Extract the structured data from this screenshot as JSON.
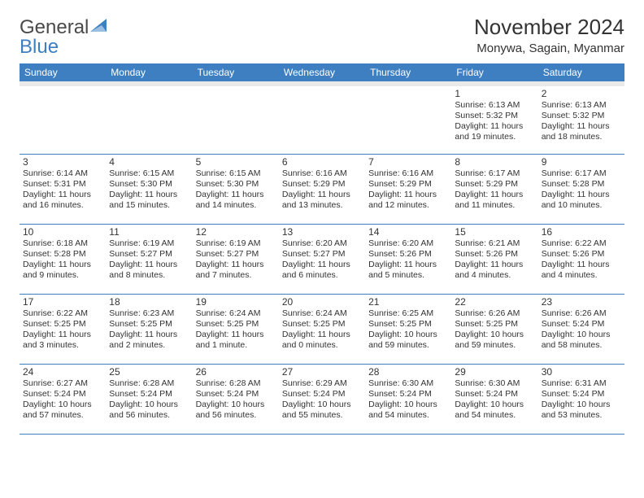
{
  "brand": {
    "part1": "General",
    "part2": "Blue"
  },
  "title": "November 2024",
  "location": "Monywa, Sagain, Myanmar",
  "colors": {
    "accent": "#3d7fc1",
    "header_band": "#e9e9e9",
    "text": "#333333",
    "bg": "#ffffff"
  },
  "weekdays": [
    "Sunday",
    "Monday",
    "Tuesday",
    "Wednesday",
    "Thursday",
    "Friday",
    "Saturday"
  ],
  "layout": {
    "blanks_before": 5,
    "days_in_month": 30
  },
  "days": {
    "1": {
      "sunrise": "6:13 AM",
      "sunset": "5:32 PM",
      "daylight": "11 hours and 19 minutes."
    },
    "2": {
      "sunrise": "6:13 AM",
      "sunset": "5:32 PM",
      "daylight": "11 hours and 18 minutes."
    },
    "3": {
      "sunrise": "6:14 AM",
      "sunset": "5:31 PM",
      "daylight": "11 hours and 16 minutes."
    },
    "4": {
      "sunrise": "6:15 AM",
      "sunset": "5:30 PM",
      "daylight": "11 hours and 15 minutes."
    },
    "5": {
      "sunrise": "6:15 AM",
      "sunset": "5:30 PM",
      "daylight": "11 hours and 14 minutes."
    },
    "6": {
      "sunrise": "6:16 AM",
      "sunset": "5:29 PM",
      "daylight": "11 hours and 13 minutes."
    },
    "7": {
      "sunrise": "6:16 AM",
      "sunset": "5:29 PM",
      "daylight": "11 hours and 12 minutes."
    },
    "8": {
      "sunrise": "6:17 AM",
      "sunset": "5:29 PM",
      "daylight": "11 hours and 11 minutes."
    },
    "9": {
      "sunrise": "6:17 AM",
      "sunset": "5:28 PM",
      "daylight": "11 hours and 10 minutes."
    },
    "10": {
      "sunrise": "6:18 AM",
      "sunset": "5:28 PM",
      "daylight": "11 hours and 9 minutes."
    },
    "11": {
      "sunrise": "6:19 AM",
      "sunset": "5:27 PM",
      "daylight": "11 hours and 8 minutes."
    },
    "12": {
      "sunrise": "6:19 AM",
      "sunset": "5:27 PM",
      "daylight": "11 hours and 7 minutes."
    },
    "13": {
      "sunrise": "6:20 AM",
      "sunset": "5:27 PM",
      "daylight": "11 hours and 6 minutes."
    },
    "14": {
      "sunrise": "6:20 AM",
      "sunset": "5:26 PM",
      "daylight": "11 hours and 5 minutes."
    },
    "15": {
      "sunrise": "6:21 AM",
      "sunset": "5:26 PM",
      "daylight": "11 hours and 4 minutes."
    },
    "16": {
      "sunrise": "6:22 AM",
      "sunset": "5:26 PM",
      "daylight": "11 hours and 4 minutes."
    },
    "17": {
      "sunrise": "6:22 AM",
      "sunset": "5:25 PM",
      "daylight": "11 hours and 3 minutes."
    },
    "18": {
      "sunrise": "6:23 AM",
      "sunset": "5:25 PM",
      "daylight": "11 hours and 2 minutes."
    },
    "19": {
      "sunrise": "6:24 AM",
      "sunset": "5:25 PM",
      "daylight": "11 hours and 1 minute."
    },
    "20": {
      "sunrise": "6:24 AM",
      "sunset": "5:25 PM",
      "daylight": "11 hours and 0 minutes."
    },
    "21": {
      "sunrise": "6:25 AM",
      "sunset": "5:25 PM",
      "daylight": "10 hours and 59 minutes."
    },
    "22": {
      "sunrise": "6:26 AM",
      "sunset": "5:25 PM",
      "daylight": "10 hours and 59 minutes."
    },
    "23": {
      "sunrise": "6:26 AM",
      "sunset": "5:24 PM",
      "daylight": "10 hours and 58 minutes."
    },
    "24": {
      "sunrise": "6:27 AM",
      "sunset": "5:24 PM",
      "daylight": "10 hours and 57 minutes."
    },
    "25": {
      "sunrise": "6:28 AM",
      "sunset": "5:24 PM",
      "daylight": "10 hours and 56 minutes."
    },
    "26": {
      "sunrise": "6:28 AM",
      "sunset": "5:24 PM",
      "daylight": "10 hours and 56 minutes."
    },
    "27": {
      "sunrise": "6:29 AM",
      "sunset": "5:24 PM",
      "daylight": "10 hours and 55 minutes."
    },
    "28": {
      "sunrise": "6:30 AM",
      "sunset": "5:24 PM",
      "daylight": "10 hours and 54 minutes."
    },
    "29": {
      "sunrise": "6:30 AM",
      "sunset": "5:24 PM",
      "daylight": "10 hours and 54 minutes."
    },
    "30": {
      "sunrise": "6:31 AM",
      "sunset": "5:24 PM",
      "daylight": "10 hours and 53 minutes."
    }
  },
  "labels": {
    "sunrise": "Sunrise:",
    "sunset": "Sunset:",
    "daylight": "Daylight:"
  }
}
